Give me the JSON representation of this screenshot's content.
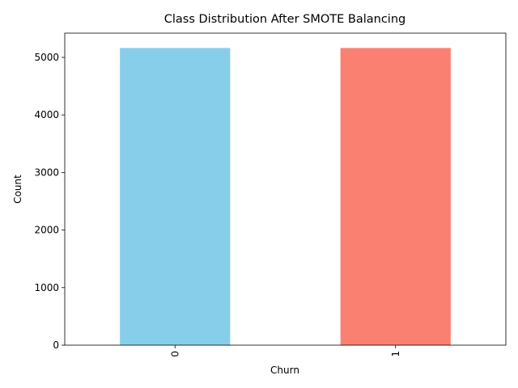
{
  "chart_data": {
    "type": "bar",
    "title": "Class Distribution After SMOTE Balancing",
    "xlabel": "Churn",
    "ylabel": "Count",
    "categories": [
      "0",
      "1"
    ],
    "values": [
      5163,
      5163
    ],
    "colors": [
      "#87ceeb",
      "#fa8072"
    ],
    "ylim": [
      0,
      5421
    ],
    "yticks": [
      0,
      1000,
      2000,
      3000,
      4000,
      5000
    ],
    "grid": false,
    "legend": "none"
  }
}
